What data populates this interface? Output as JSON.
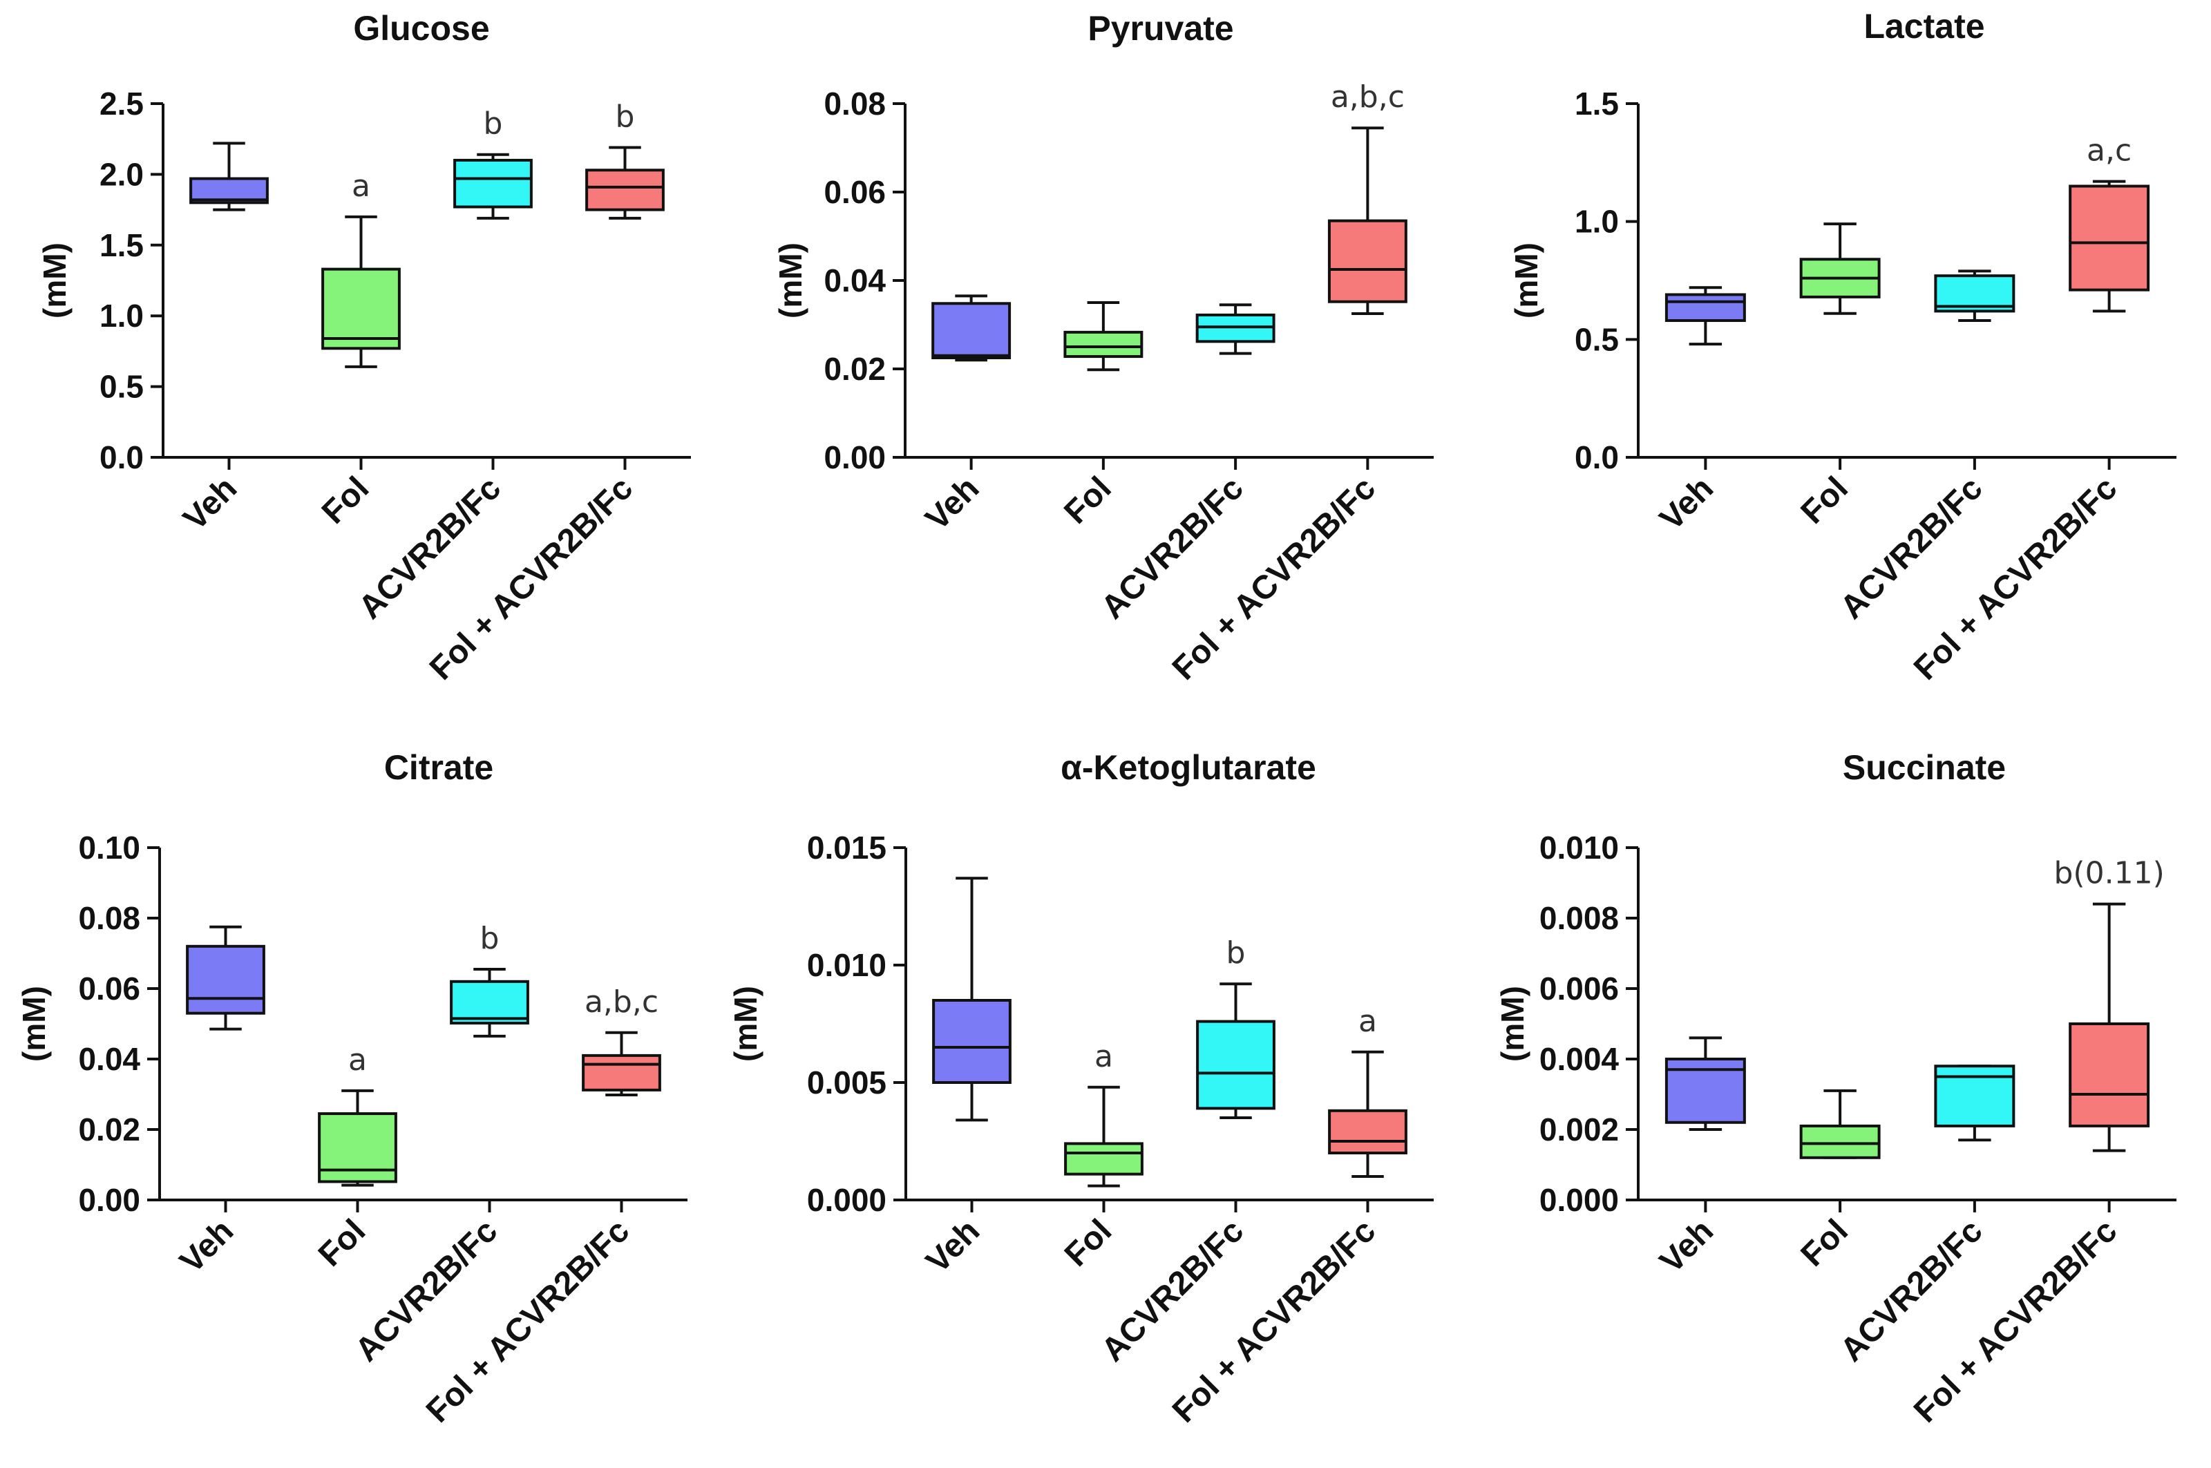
{
  "colors": {
    "Veh": "#7b7bf5",
    "Fol": "#85f279",
    "ACVR2B/Fc": "#33f7f7",
    "Fol + ACVR2B/Fc": "#f77a7a"
  },
  "chart_data": [
    {
      "type": "box",
      "title": "Glucose",
      "ylabel": "(mM)",
      "ylim": [
        0,
        2.5
      ],
      "yticks": [
        "0.0",
        "0.5",
        "1.0",
        "1.5",
        "2.0",
        "2.5"
      ],
      "categories": [
        "Veh",
        "Fol",
        "ACVR2B/Fc",
        "Fol + ACVR2B/Fc"
      ],
      "boxes": [
        {
          "min": 1.75,
          "q1": 1.8,
          "median": 1.82,
          "q3": 1.97,
          "max": 2.22,
          "label": ""
        },
        {
          "min": 0.64,
          "q1": 0.77,
          "median": 0.84,
          "q3": 1.33,
          "max": 1.7,
          "label": "a"
        },
        {
          "min": 1.69,
          "q1": 1.77,
          "median": 1.97,
          "q3": 2.1,
          "max": 2.14,
          "label": "b"
        },
        {
          "min": 1.69,
          "q1": 1.75,
          "median": 1.91,
          "q3": 2.03,
          "max": 2.19,
          "label": "b"
        }
      ]
    },
    {
      "type": "box",
      "title": "Pyruvate",
      "ylabel": "(mM)",
      "ylim": [
        0,
        0.08
      ],
      "yticks": [
        "0.00",
        "0.02",
        "0.04",
        "0.06",
        "0.08"
      ],
      "categories": [
        "Veh",
        "Fol",
        "ACVR2B/Fc",
        "Fol + ACVR2B/Fc"
      ],
      "boxes": [
        {
          "min": 0.022,
          "q1": 0.0225,
          "median": 0.023,
          "q3": 0.0348,
          "max": 0.0365,
          "label": ""
        },
        {
          "min": 0.0198,
          "q1": 0.0228,
          "median": 0.025,
          "q3": 0.0283,
          "max": 0.035,
          "label": ""
        },
        {
          "min": 0.0235,
          "q1": 0.0262,
          "median": 0.0295,
          "q3": 0.0322,
          "max": 0.0345,
          "label": ""
        },
        {
          "min": 0.0325,
          "q1": 0.0352,
          "median": 0.0425,
          "q3": 0.0535,
          "max": 0.0745,
          "label": "a,b,c"
        }
      ]
    },
    {
      "type": "box",
      "title": "Lactate",
      "ylabel": "(mM)",
      "ylim": [
        0,
        1.5
      ],
      "yticks": [
        "0.0",
        "0.5",
        "1.0",
        "1.5"
      ],
      "categories": [
        "Veh",
        "Fol",
        "ACVR2B/Fc",
        "Fol + ACVR2B/Fc"
      ],
      "boxes": [
        {
          "min": 0.48,
          "q1": 0.58,
          "median": 0.66,
          "q3": 0.69,
          "max": 0.72,
          "label": ""
        },
        {
          "min": 0.61,
          "q1": 0.68,
          "median": 0.76,
          "q3": 0.84,
          "max": 0.99,
          "label": ""
        },
        {
          "min": 0.58,
          "q1": 0.62,
          "median": 0.64,
          "q3": 0.77,
          "max": 0.79,
          "label": ""
        },
        {
          "min": 0.62,
          "q1": 0.71,
          "median": 0.91,
          "q3": 1.15,
          "max": 1.17,
          "label": "a,c"
        }
      ]
    },
    {
      "type": "box",
      "title": "Citrate",
      "ylabel": "(mM)",
      "ylim": [
        0,
        0.1
      ],
      "yticks": [
        "0.00",
        "0.02",
        "0.04",
        "0.06",
        "0.08",
        "0.10"
      ],
      "categories": [
        "Veh",
        "Fol",
        "ACVR2B/Fc",
        "Fol + ACVR2B/Fc"
      ],
      "boxes": [
        {
          "min": 0.0485,
          "q1": 0.053,
          "median": 0.0572,
          "q3": 0.072,
          "max": 0.0775,
          "label": ""
        },
        {
          "min": 0.0042,
          "q1": 0.0052,
          "median": 0.0085,
          "q3": 0.0245,
          "max": 0.031,
          "label": "a"
        },
        {
          "min": 0.0465,
          "q1": 0.0502,
          "median": 0.0515,
          "q3": 0.062,
          "max": 0.0655,
          "label": "b"
        },
        {
          "min": 0.0298,
          "q1": 0.0312,
          "median": 0.0385,
          "q3": 0.041,
          "max": 0.0475,
          "label": "a,b,c"
        }
      ]
    },
    {
      "type": "box",
      "title": "α-Ketoglutarate",
      "ylabel": "(mM)",
      "ylim": [
        0,
        0.015
      ],
      "yticks": [
        "0.000",
        "0.005",
        "0.010",
        "0.015"
      ],
      "categories": [
        "Veh",
        "Fol",
        "ACVR2B/Fc",
        "Fol + ACVR2B/Fc"
      ],
      "boxes": [
        {
          "min": 0.0034,
          "q1": 0.005,
          "median": 0.0065,
          "q3": 0.0085,
          "max": 0.0137,
          "label": ""
        },
        {
          "min": 0.0006,
          "q1": 0.0011,
          "median": 0.002,
          "q3": 0.0024,
          "max": 0.0048,
          "label": "a"
        },
        {
          "min": 0.0035,
          "q1": 0.0039,
          "median": 0.0054,
          "q3": 0.0076,
          "max": 0.0092,
          "label": "b"
        },
        {
          "min": 0.001,
          "q1": 0.002,
          "median": 0.0025,
          "q3": 0.0038,
          "max": 0.0063,
          "label": "a"
        }
      ]
    },
    {
      "type": "box",
      "title": "Succinate",
      "ylabel": "(mM)",
      "ylim": [
        0,
        0.01
      ],
      "yticks": [
        "0.000",
        "0.002",
        "0.004",
        "0.006",
        "0.008",
        "0.010"
      ],
      "categories": [
        "Veh",
        "Fol",
        "ACVR2B/Fc",
        "Fol + ACVR2B/Fc"
      ],
      "boxes": [
        {
          "min": 0.002,
          "q1": 0.0022,
          "median": 0.0037,
          "q3": 0.004,
          "max": 0.0046,
          "label": ""
        },
        {
          "min": 0.0012,
          "q1": 0.0012,
          "median": 0.0016,
          "q3": 0.0021,
          "max": 0.0031,
          "label": ""
        },
        {
          "min": 0.0017,
          "q1": 0.0021,
          "median": 0.0035,
          "q3": 0.0038,
          "max": 0.0038,
          "label": ""
        },
        {
          "min": 0.0014,
          "q1": 0.0021,
          "median": 0.003,
          "q3": 0.005,
          "max": 0.0084,
          "label": "b(0.11)"
        }
      ]
    }
  ]
}
